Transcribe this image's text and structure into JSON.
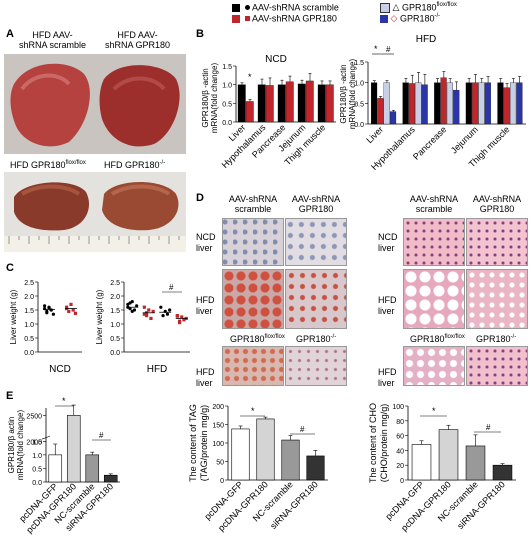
{
  "legend": {
    "items": [
      {
        "label": "AAV-shRNA scramble",
        "color": "#000000",
        "shape": "square"
      },
      {
        "label": "AAV-shRNA GPR180",
        "color": "#c0272d",
        "shape": "square"
      },
      {
        "label": "GPR180",
        "sup": "flox/flox",
        "color": "#c8d0e8",
        "shape": "square"
      },
      {
        "label": "GPR180",
        "sup": "-/-",
        "color": "#2a35a8",
        "shape": "square"
      }
    ]
  },
  "panelA": {
    "letter": "A",
    "top_left": "HFD AAV-\nshRNA scramble",
    "top_right": "HFD AAV-\nshRNA GPR180",
    "bottom_left": "HFD GPR180",
    "bottom_left_sup": "flox/flox",
    "bottom_right": "HFD GPR180",
    "bottom_right_sup": "-/-"
  },
  "panelB": {
    "letter": "B",
    "ylabel": "GPR180/β -actin\nmRNA(fold change)",
    "left_title": "NCD",
    "right_title": "HFD",
    "categories": [
      "Liver",
      "Hypothalamus",
      "Pancrease",
      "Jejunum",
      "Thigh muscle"
    ],
    "left_sig": "*",
    "right_sig_1": "*",
    "right_sig_2": "#"
  },
  "panelC": {
    "letter": "C",
    "ylabel": "Liver weight (g)",
    "left_group": "NCD",
    "right_group": "HFD",
    "sig": "#"
  },
  "panelD": {
    "letter": "D",
    "col1": "AAV-shRNA\nscramble",
    "col2": "AAV-shRNA\nGPR180",
    "col3": "AAV-shRNA\nscramble",
    "col4": "AAV-shRNA\nGPR180",
    "row1": "NCD\nliver",
    "row2": "HFD\nliver",
    "row3": "HFD\nliver",
    "row1r": "NCD\nliver",
    "row2r": "HFD\nliver",
    "row3r": "HFD\nliver",
    "ko_l1": "GPR180",
    "ko_l1_sup": "flox/flox",
    "ko_l2": "GPR180",
    "ko_l2_sup": "-/-",
    "ko_r1": "GPR180",
    "ko_r1_sup": "flox/flox",
    "ko_r2": "GPR180",
    "ko_r2_sup": "-/-"
  },
  "panelE": {
    "letter": "E",
    "categories": [
      "pcDNA-GFP",
      "pcDNA-GPR180",
      "NC-scramble",
      "siRNA-GPR180"
    ],
    "chart1": {
      "ylabel": "GPR180/β actin\nmRNA(fold change)",
      "sig1": "*",
      "sig2": "#"
    },
    "chart2": {
      "ylabel": "The content of TAG\n(TAG/protein mg/g)",
      "sig1": "*",
      "sig2": "#"
    },
    "chart3": {
      "ylabel": "The content of CHO\n(CHO/protein mg/g)",
      "sig1": "*",
      "sig2": "#"
    }
  },
  "chart_data": [
    {
      "type": "bar",
      "title": "NCD",
      "ylabel": "GPR180/β -actin mRNA(fold change)",
      "categories": [
        "Liver",
        "Hypothalamus",
        "Pancrease",
        "Jejunum",
        "Thigh muscle"
      ],
      "ylim": [
        0,
        1.5
      ],
      "yticks": [
        0,
        0.5,
        1.0,
        1.5
      ],
      "series": [
        {
          "name": "AAV-shRNA scramble",
          "color": "#000000",
          "values": [
            1.0,
            1.0,
            1.0,
            1.02,
            1.0
          ],
          "err": [
            0.05,
            0.15,
            0.12,
            0.1,
            0.1
          ]
        },
        {
          "name": "AAV-shRNA GPR180",
          "color": "#c0272d",
          "values": [
            0.55,
            0.98,
            1.08,
            1.1,
            1.0
          ],
          "err": [
            0.05,
            0.2,
            0.15,
            0.2,
            0.1
          ]
        }
      ]
    },
    {
      "type": "bar",
      "title": "HFD",
      "ylabel": "GPR180/β -actin mRNA(fold change)",
      "categories": [
        "Liver",
        "Hypothalamus",
        "Pancrease",
        "Jejunum",
        "Thigh muscle"
      ],
      "ylim": [
        0,
        1.5
      ],
      "yticks": [
        0,
        0.5,
        1.0,
        1.5
      ],
      "series": [
        {
          "name": "AAV-shRNA scramble",
          "color": "#000000",
          "values": [
            1.0,
            1.0,
            1.0,
            1.0,
            1.0
          ],
          "err": [
            0.05,
            0.1,
            0.1,
            0.1,
            0.1
          ]
        },
        {
          "name": "AAV-shRNA GPR180",
          "color": "#c0272d",
          "values": [
            0.62,
            0.98,
            1.12,
            1.0,
            0.88
          ],
          "err": [
            0.05,
            0.2,
            0.15,
            0.2,
            0.1
          ]
        },
        {
          "name": "GPR180 flox/flox",
          "color": "#c8d0e8",
          "values": [
            1.0,
            1.0,
            1.0,
            1.0,
            1.0
          ],
          "err": [
            0.05,
            0.25,
            0.1,
            0.1,
            0.1
          ]
        },
        {
          "name": "GPR180 -/-",
          "color": "#2a35a8",
          "values": [
            0.3,
            0.95,
            0.82,
            1.0,
            1.0
          ],
          "err": [
            0.03,
            0.25,
            0.2,
            0.15,
            0.15
          ]
        }
      ]
    },
    {
      "type": "scatter",
      "title": "NCD",
      "ylabel": "Liver weight (g)",
      "ylim": [
        0,
        2.5
      ],
      "yticks": [
        0.0,
        0.5,
        1.0,
        1.5,
        2.0,
        2.5
      ],
      "groups": [
        {
          "name": "AAV-shRNA scramble",
          "color": "#000000",
          "mean": 1.52,
          "points": [
            1.55,
            1.45,
            1.6,
            1.5,
            1.35,
            1.65,
            1.4,
            1.58,
            1.5
          ]
        },
        {
          "name": "AAV-shRNA GPR180",
          "color": "#c0272d",
          "mean": 1.55,
          "points": [
            1.6,
            1.45,
            1.7,
            1.5,
            1.38,
            1.55
          ]
        }
      ]
    },
    {
      "type": "scatter",
      "title": "HFD",
      "ylabel": "Liver weight (g)",
      "ylim": [
        0,
        2.5
      ],
      "yticks": [
        0.0,
        0.5,
        1.0,
        1.5,
        2.0,
        2.5
      ],
      "groups": [
        {
          "name": "AAV-shRNA scramble",
          "color": "#000000",
          "mean": 1.6,
          "points": [
            1.7,
            1.55,
            1.8,
            1.5,
            1.65,
            1.6,
            1.75,
            1.45
          ]
        },
        {
          "name": "AAV-shRNA GPR180",
          "color": "#c0272d",
          "mean": 1.4,
          "points": [
            1.6,
            1.3,
            1.5,
            1.2,
            1.45,
            1.35,
            1.4
          ]
        },
        {
          "name": "GPR180 flox/flox",
          "color": "#000000",
          "mean": 1.42,
          "points": [
            1.6,
            1.3,
            1.45,
            1.35,
            1.5
          ]
        },
        {
          "name": "GPR180 -/-",
          "color": "#c0272d",
          "mean": 1.2,
          "points": [
            1.3,
            1.1,
            1.25,
            1.15,
            1.2,
            1.28,
            1.05
          ]
        }
      ]
    },
    {
      "type": "bar",
      "ylabel": "GPR180/β actin mRNA(fold change)",
      "categories": [
        "pcDNA-GFP",
        "pcDNA-GPR180",
        "NC-scramble",
        "siRNA-GPR180"
      ],
      "ylim": [
        0,
        2500
      ],
      "yticks": [
        0,
        0.5,
        1.0,
        1.5,
        2000,
        2500
      ],
      "values": [
        1.0,
        2500,
        1.0,
        0.25
      ],
      "err": [
        0.4,
        200,
        0.1,
        0.05
      ],
      "colors": [
        "#ffffff",
        "#d4d4d4",
        "#999999",
        "#333333"
      ]
    },
    {
      "type": "bar",
      "ylabel": "The content of TAG (TAG/protein mg/g)",
      "categories": [
        "pcDNA-GFP",
        "pcDNA-GPR180",
        "NC-scramble",
        "siRNA-GPR180"
      ],
      "ylim": [
        0,
        200
      ],
      "yticks": [
        0,
        50,
        100,
        150,
        200
      ],
      "values": [
        138,
        165,
        108,
        65
      ],
      "err": [
        8,
        5,
        12,
        15
      ],
      "colors": [
        "#ffffff",
        "#d4d4d4",
        "#999999",
        "#333333"
      ]
    },
    {
      "type": "bar",
      "ylabel": "The content of CHO (CHO/protein mg/g)",
      "categories": [
        "pcDNA-GFP",
        "pcDNA-GPR180",
        "NC-scramble",
        "siRNA-GPR180"
      ],
      "ylim": [
        0,
        100
      ],
      "yticks": [
        0,
        20,
        40,
        60,
        80,
        100
      ],
      "values": [
        48,
        68,
        46,
        20
      ],
      "err": [
        5,
        6,
        15,
        2
      ],
      "colors": [
        "#ffffff",
        "#d4d4d4",
        "#999999",
        "#333333"
      ]
    }
  ]
}
